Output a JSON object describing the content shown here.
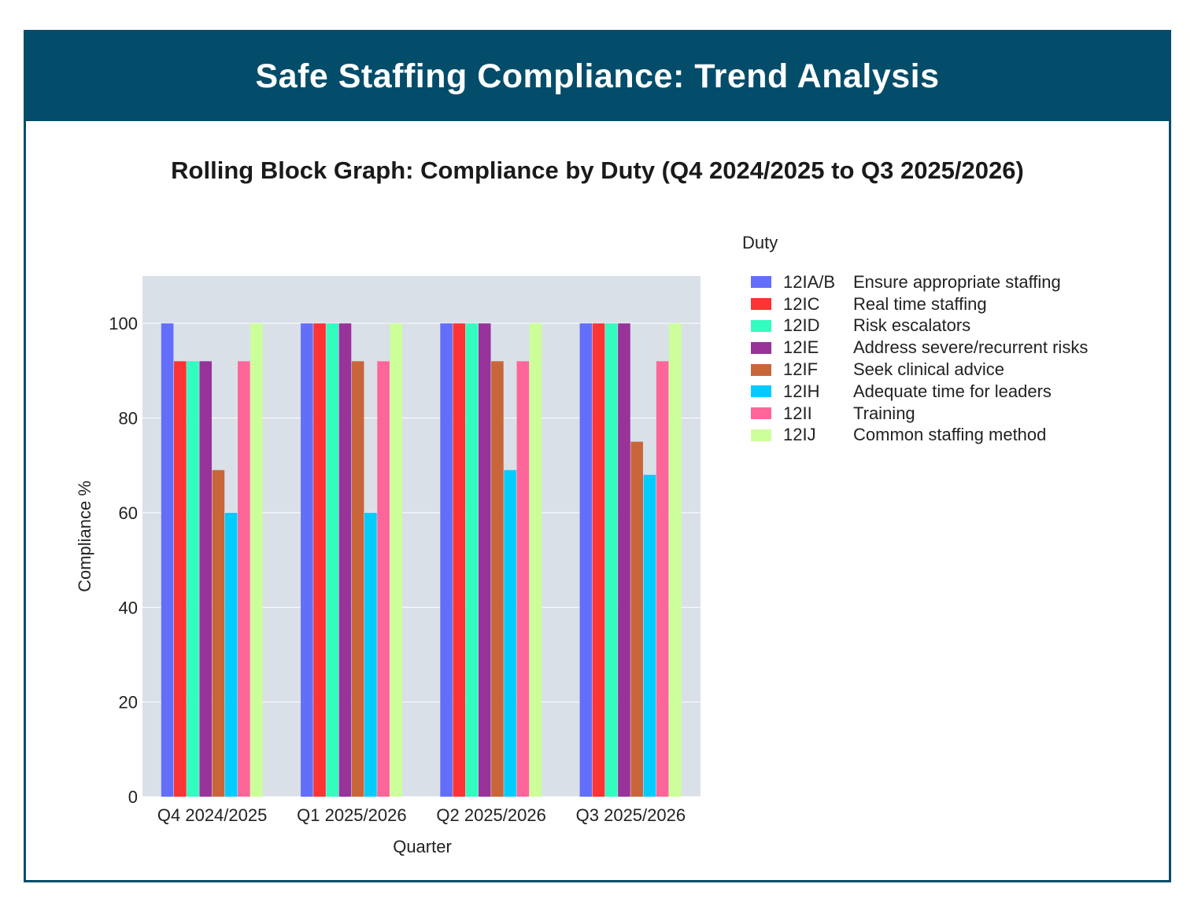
{
  "header": {
    "title": "Safe Staffing Compliance: Trend Analysis"
  },
  "colors": {
    "banner": "#044d6a",
    "plot_bg": "#d9e0e8",
    "grid": "#ffffff"
  },
  "chart_data": {
    "type": "bar",
    "title": "Rolling Block Graph: Compliance by Duty (Q4 2024/2025 to Q3 2025/2026)",
    "xlabel": "Quarter",
    "ylabel": "Compliance %",
    "ylim": [
      0,
      110
    ],
    "yticks": [
      "0",
      "20",
      "40",
      "60",
      "80",
      "100"
    ],
    "grid": true,
    "legend_title": "Duty",
    "legend_position": "right",
    "categories": [
      "Q4 2024/2025",
      "Q1 2025/2026",
      "Q2 2025/2026",
      "Q3 2025/2026"
    ],
    "series": [
      {
        "code": "12IA/B",
        "name": "Ensure appropriate staffing",
        "color": "#636efa",
        "values": [
          100,
          100,
          100,
          100
        ]
      },
      {
        "code": "12IC",
        "name": "Real time staffing",
        "color": "#fe3333",
        "values": [
          92,
          100,
          100,
          100
        ]
      },
      {
        "code": "12ID",
        "name": "Risk escalators",
        "color": "#33fcc1",
        "values": [
          92,
          100,
          100,
          100
        ]
      },
      {
        "code": "12IE",
        "name": "Address severe/recurrent risks",
        "color": "#973399",
        "values": [
          92,
          100,
          100,
          100
        ]
      },
      {
        "code": "12IF",
        "name": "Seek clinical advice",
        "color": "#c8663a",
        "values": [
          69,
          92,
          92,
          75
        ]
      },
      {
        "code": "12IH",
        "name": "Adequate time for leaders",
        "color": "#00ccff",
        "values": [
          60,
          60,
          69,
          68
        ]
      },
      {
        "code": "12II",
        "name": "Training",
        "color": "#fe6699",
        "values": [
          92,
          92,
          92,
          92
        ]
      },
      {
        "code": "12IJ",
        "name": "Common staffing method",
        "color": "#ccff99",
        "values": [
          100,
          100,
          100,
          100
        ]
      }
    ]
  }
}
